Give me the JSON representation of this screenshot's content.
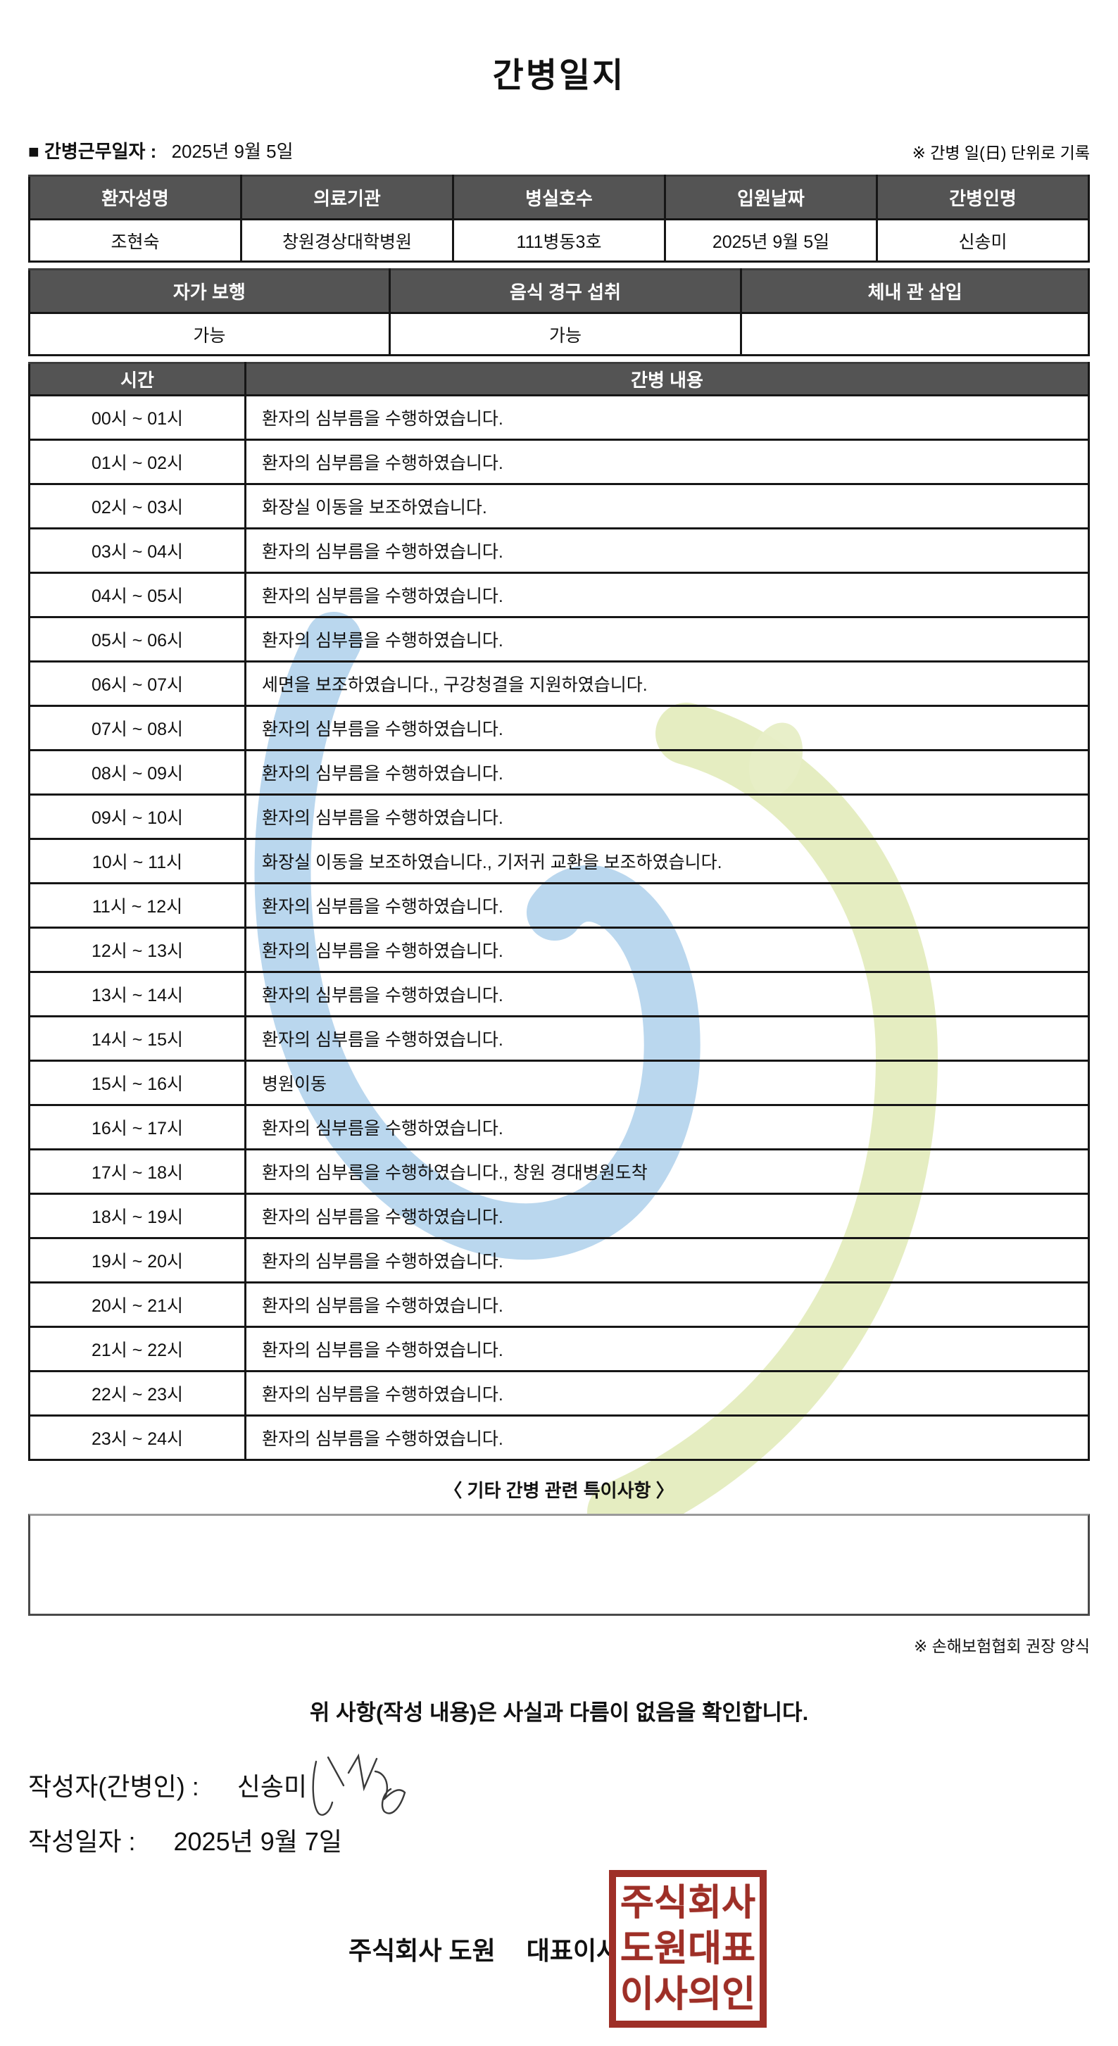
{
  "title": "간병일지",
  "meta": {
    "work_date_label": "■ 간병근무일자  :",
    "work_date": "2025년 9월 5일",
    "unit_note": "※ 간병 일(日) 단위로 기록"
  },
  "patient_info": {
    "headers": [
      "환자성명",
      "의료기관",
      "병실호수",
      "입원날짜",
      "간병인명"
    ],
    "values": [
      "조현숙",
      "창원경상대학병원",
      "111병동3호",
      "2025년 9월 5일",
      "신송미"
    ]
  },
  "condition_info": {
    "headers": [
      "자가 보행",
      "음식 경구 섭취",
      "체내 관 삽입"
    ],
    "values": [
      "가능",
      "가능",
      ""
    ]
  },
  "care_log": {
    "time_header": "시간",
    "content_header": "간병 내용",
    "rows": [
      {
        "time": "00시 ~ 01시",
        "content": "환자의 심부름을 수행하였습니다."
      },
      {
        "time": "01시 ~ 02시",
        "content": "환자의 심부름을 수행하였습니다."
      },
      {
        "time": "02시 ~ 03시",
        "content": "화장실 이동을 보조하였습니다."
      },
      {
        "time": "03시 ~ 04시",
        "content": "환자의 심부름을 수행하였습니다."
      },
      {
        "time": "04시 ~ 05시",
        "content": "환자의 심부름을 수행하였습니다."
      },
      {
        "time": "05시 ~ 06시",
        "content": "환자의 심부름을 수행하였습니다."
      },
      {
        "time": "06시 ~ 07시",
        "content": "세면을 보조하였습니다., 구강청결을 지원하였습니다."
      },
      {
        "time": "07시 ~ 08시",
        "content": "환자의 심부름을 수행하였습니다."
      },
      {
        "time": "08시 ~ 09시",
        "content": "환자의 심부름을 수행하였습니다."
      },
      {
        "time": "09시 ~ 10시",
        "content": "환자의 심부름을 수행하였습니다."
      },
      {
        "time": "10시 ~ 11시",
        "content": "화장실 이동을 보조하였습니다., 기저귀 교환을 보조하였습니다."
      },
      {
        "time": "11시 ~ 12시",
        "content": "환자의 심부름을 수행하였습니다."
      },
      {
        "time": "12시 ~ 13시",
        "content": "환자의 심부름을 수행하였습니다."
      },
      {
        "time": "13시 ~ 14시",
        "content": "환자의 심부름을 수행하였습니다."
      },
      {
        "time": "14시 ~ 15시",
        "content": "환자의 심부름을 수행하였습니다."
      },
      {
        "time": "15시 ~ 16시",
        "content": "병원이동"
      },
      {
        "time": "16시 ~ 17시",
        "content": "환자의 심부름을 수행하였습니다."
      },
      {
        "time": "17시 ~ 18시",
        "content": "환자의 심부름을 수행하였습니다., 창원 경대병원도착"
      },
      {
        "time": "18시 ~ 19시",
        "content": "환자의 심부름을 수행하였습니다."
      },
      {
        "time": "19시 ~ 20시",
        "content": "환자의 심부름을 수행하였습니다."
      },
      {
        "time": "20시 ~ 21시",
        "content": "환자의 심부름을 수행하였습니다."
      },
      {
        "time": "21시 ~ 22시",
        "content": "환자의 심부름을 수행하였습니다."
      },
      {
        "time": "22시 ~ 23시",
        "content": "환자의 심부름을 수행하였습니다."
      },
      {
        "time": "23시 ~ 24시",
        "content": "환자의 심부름을 수행하였습니다."
      }
    ]
  },
  "notes": {
    "heading": "〈 기타 간병 관련 특이사항 〉",
    "content": ""
  },
  "footer": {
    "form_note": "※ 손해보험협회 권장 양식",
    "confirmation": "위 사항(작성 내용)은 사실과 다름이 없음을 확인합니다.",
    "author_label": "작성자(간병인) :",
    "author_name": "신송미",
    "date_label": "작성일자 :",
    "date_value": "2025년 9월 7일",
    "company_line": "주식회사 도원",
    "company_title": "대표이사",
    "stamp_lines": [
      "주식회사",
      "도원대표",
      "이사의인"
    ]
  },
  "colors": {
    "header_bg": "#545454",
    "stamp_red": "#9e2f27",
    "watermark_blue": "#b3d3ec",
    "watermark_green": "#e4ecbe"
  }
}
